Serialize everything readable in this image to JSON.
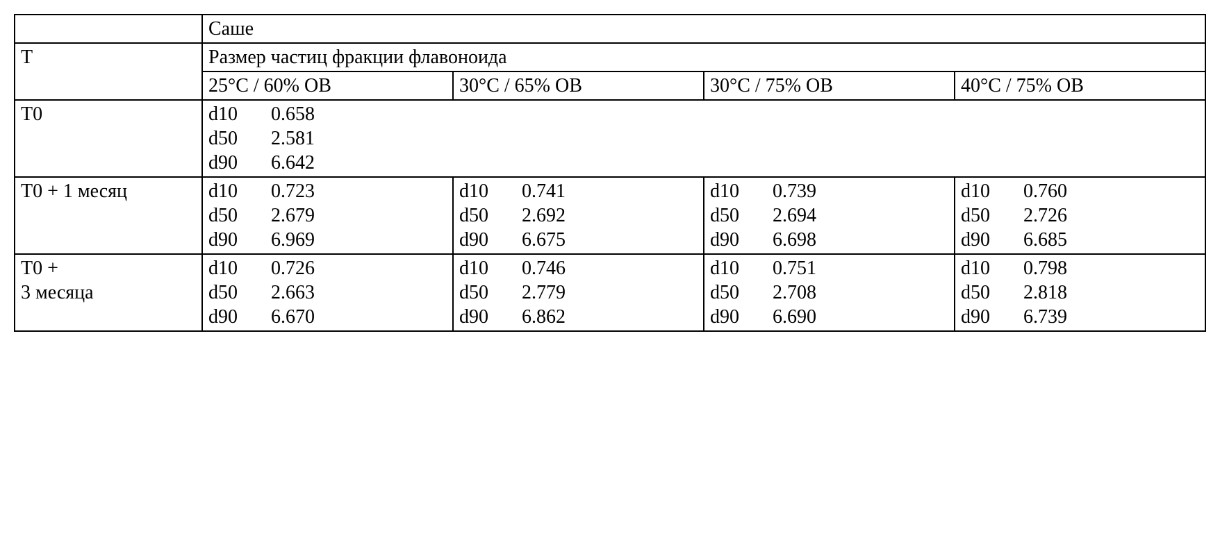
{
  "header": {
    "sachet": "Саше",
    "t_label": "T",
    "particle_size_header": "Размер частиц фракции флавоноида"
  },
  "conditions": {
    "c1": "25°C / 60% ОВ",
    "c2": "30°C / 65% ОВ",
    "c3": "30°C / 75% ОВ",
    "c4": "40°C / 75% ОВ"
  },
  "rows": {
    "t0": {
      "label": "T0",
      "c1": {
        "d10": {
          "lab": "d10",
          "val": "0.658"
        },
        "d50": {
          "lab": "d50",
          "val": "2.581"
        },
        "d90": {
          "lab": "d90",
          "val": "6.642"
        }
      }
    },
    "t1": {
      "label": "T0 + 1 месяц",
      "c1": {
        "d10": {
          "lab": "d10",
          "val": "0.723"
        },
        "d50": {
          "lab": "d50",
          "val": "2.679"
        },
        "d90": {
          "lab": "d90",
          "val": "6.969"
        }
      },
      "c2": {
        "d10": {
          "lab": "d10",
          "val": "0.741"
        },
        "d50": {
          "lab": "d50",
          "val": "2.692"
        },
        "d90": {
          "lab": "d90",
          "val": "6.675"
        }
      },
      "c3": {
        "d10": {
          "lab": "d10",
          "val": "0.739"
        },
        "d50": {
          "lab": "d50",
          "val": "2.694"
        },
        "d90": {
          "lab": "d90",
          "val": "6.698"
        }
      },
      "c4": {
        "d10": {
          "lab": "d10",
          "val": "0.760"
        },
        "d50": {
          "lab": "d50",
          "val": "2.726"
        },
        "d90": {
          "lab": "d90",
          "val": "6.685"
        }
      }
    },
    "t3": {
      "label": "T0 + 3 месяца",
      "c1": {
        "d10": {
          "lab": "d10",
          "val": "0.726"
        },
        "d50": {
          "lab": "d50",
          "val": "2.663"
        },
        "d90": {
          "lab": "d90",
          "val": "6.670"
        }
      },
      "c2": {
        "d10": {
          "lab": "d10",
          "val": "0.746"
        },
        "d50": {
          "lab": "d50",
          "val": "2.779"
        },
        "d90": {
          "lab": "d90",
          "val": "6.862"
        }
      },
      "c3": {
        "d10": {
          "lab": "d10",
          "val": "0.751"
        },
        "d50": {
          "lab": "d50",
          "val": "2.708"
        },
        "d90": {
          "lab": "d90",
          "val": "6.690"
        }
      },
      "c4": {
        "d10": {
          "lab": "d10",
          "val": "0.798"
        },
        "d50": {
          "lab": "d50",
          "val": "2.818"
        },
        "d90": {
          "lab": "d90",
          "val": "6.739"
        }
      }
    }
  }
}
